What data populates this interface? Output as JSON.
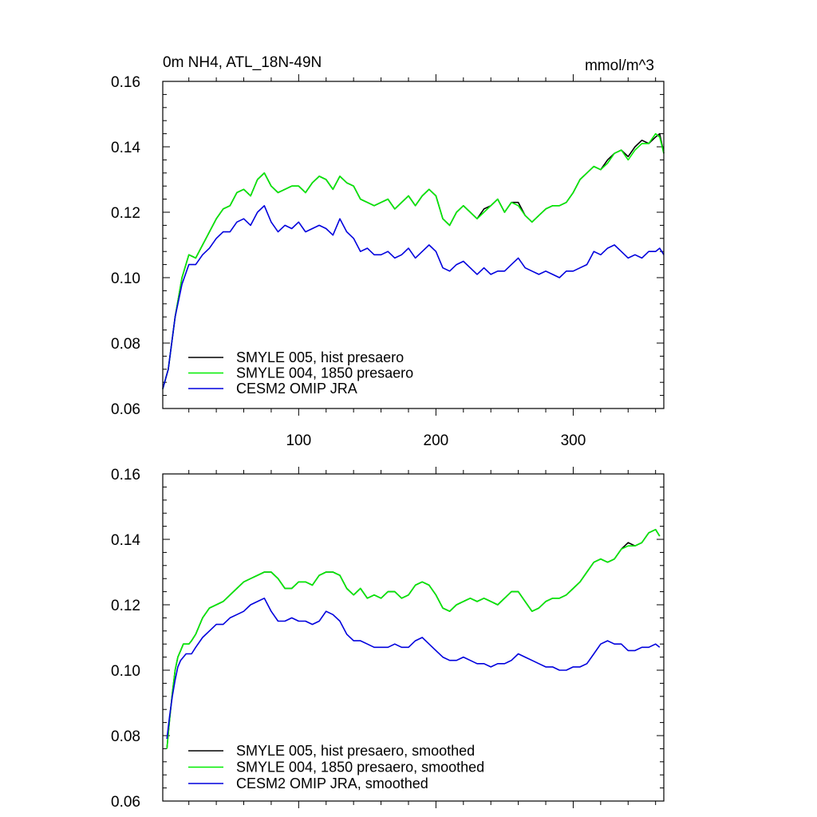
{
  "chart_data": [
    {
      "type": "line",
      "title_left": "0m NH4, ATL_18N-49N",
      "title_right": "mmol/m^3",
      "xlabel": "",
      "ylabel": "",
      "xlim": [
        1,
        366
      ],
      "ylim": [
        0.06,
        0.16
      ],
      "xticks": [
        100,
        200,
        300
      ],
      "xtick_labels": [
        "100",
        "200",
        "300"
      ],
      "yticks": [
        0.06,
        0.08,
        0.1,
        0.12,
        0.14,
        0.16
      ],
      "ytick_labels": [
        "0.06",
        "0.08",
        "0.10",
        "0.12",
        "0.14",
        "0.16"
      ],
      "legend_position": "bottom-left",
      "series": [
        {
          "name": "SMYLE 005, hist presaero",
          "color": "#000000",
          "x": [
            1,
            5,
            10,
            15,
            20,
            25,
            30,
            35,
            40,
            45,
            50,
            55,
            60,
            65,
            70,
            75,
            80,
            85,
            90,
            95,
            100,
            105,
            110,
            115,
            120,
            125,
            130,
            135,
            140,
            145,
            150,
            155,
            160,
            165,
            170,
            175,
            180,
            185,
            190,
            195,
            200,
            205,
            210,
            215,
            220,
            225,
            230,
            235,
            240,
            245,
            250,
            255,
            260,
            265,
            270,
            275,
            280,
            285,
            290,
            295,
            300,
            305,
            310,
            315,
            320,
            325,
            330,
            335,
            340,
            345,
            350,
            355,
            360,
            363,
            366
          ],
          "values": [
            0.066,
            0.072,
            0.088,
            0.1,
            0.107,
            0.106,
            0.11,
            0.114,
            0.118,
            0.121,
            0.122,
            0.126,
            0.127,
            0.125,
            0.13,
            0.132,
            0.128,
            0.126,
            0.127,
            0.128,
            0.128,
            0.126,
            0.129,
            0.131,
            0.13,
            0.127,
            0.131,
            0.129,
            0.128,
            0.124,
            0.123,
            0.122,
            0.123,
            0.124,
            0.121,
            0.123,
            0.125,
            0.122,
            0.125,
            0.127,
            0.125,
            0.118,
            0.116,
            0.12,
            0.122,
            0.12,
            0.118,
            0.121,
            0.122,
            0.124,
            0.12,
            0.123,
            0.123,
            0.119,
            0.117,
            0.119,
            0.121,
            0.122,
            0.122,
            0.123,
            0.126,
            0.13,
            0.132,
            0.134,
            0.133,
            0.136,
            0.138,
            0.139,
            0.137,
            0.14,
            0.142,
            0.141,
            0.143,
            0.144,
            0.138
          ]
        },
        {
          "name": "SMYLE 004, 1850 presaero",
          "color": "#00ee00",
          "x": [
            1,
            5,
            10,
            15,
            20,
            25,
            30,
            35,
            40,
            45,
            50,
            55,
            60,
            65,
            70,
            75,
            80,
            85,
            90,
            95,
            100,
            105,
            110,
            115,
            120,
            125,
            130,
            135,
            140,
            145,
            150,
            155,
            160,
            165,
            170,
            175,
            180,
            185,
            190,
            195,
            200,
            205,
            210,
            215,
            220,
            225,
            230,
            235,
            240,
            245,
            250,
            255,
            260,
            265,
            270,
            275,
            280,
            285,
            290,
            295,
            300,
            305,
            310,
            315,
            320,
            325,
            330,
            335,
            340,
            345,
            350,
            355,
            360,
            363,
            366
          ],
          "values": [
            0.066,
            0.072,
            0.088,
            0.1,
            0.107,
            0.106,
            0.11,
            0.114,
            0.118,
            0.121,
            0.122,
            0.126,
            0.127,
            0.125,
            0.13,
            0.132,
            0.128,
            0.126,
            0.127,
            0.128,
            0.128,
            0.126,
            0.129,
            0.131,
            0.13,
            0.127,
            0.131,
            0.129,
            0.128,
            0.124,
            0.123,
            0.122,
            0.123,
            0.124,
            0.121,
            0.123,
            0.125,
            0.122,
            0.125,
            0.127,
            0.125,
            0.118,
            0.116,
            0.12,
            0.122,
            0.12,
            0.118,
            0.12,
            0.122,
            0.124,
            0.12,
            0.123,
            0.122,
            0.119,
            0.117,
            0.119,
            0.121,
            0.122,
            0.122,
            0.123,
            0.126,
            0.13,
            0.132,
            0.134,
            0.133,
            0.135,
            0.138,
            0.139,
            0.136,
            0.139,
            0.141,
            0.141,
            0.144,
            0.143,
            0.138
          ]
        },
        {
          "name": "CESM2 OMIP JRA",
          "color": "#0000dd",
          "x": [
            1,
            5,
            10,
            15,
            20,
            25,
            30,
            35,
            40,
            45,
            50,
            55,
            60,
            65,
            70,
            75,
            80,
            85,
            90,
            95,
            100,
            105,
            110,
            115,
            120,
            125,
            130,
            135,
            140,
            145,
            150,
            155,
            160,
            165,
            170,
            175,
            180,
            185,
            190,
            195,
            200,
            205,
            210,
            215,
            220,
            225,
            230,
            235,
            240,
            245,
            250,
            255,
            260,
            265,
            270,
            275,
            280,
            285,
            290,
            295,
            300,
            305,
            310,
            315,
            320,
            325,
            330,
            335,
            340,
            345,
            350,
            355,
            360,
            363,
            366
          ],
          "values": [
            0.066,
            0.072,
            0.088,
            0.098,
            0.104,
            0.104,
            0.107,
            0.109,
            0.112,
            0.114,
            0.114,
            0.117,
            0.118,
            0.116,
            0.12,
            0.122,
            0.117,
            0.114,
            0.116,
            0.115,
            0.117,
            0.114,
            0.115,
            0.116,
            0.115,
            0.113,
            0.118,
            0.114,
            0.112,
            0.108,
            0.109,
            0.107,
            0.107,
            0.108,
            0.106,
            0.107,
            0.109,
            0.106,
            0.108,
            0.11,
            0.108,
            0.103,
            0.102,
            0.104,
            0.105,
            0.103,
            0.101,
            0.103,
            0.101,
            0.102,
            0.102,
            0.104,
            0.106,
            0.103,
            0.102,
            0.101,
            0.102,
            0.101,
            0.1,
            0.102,
            0.102,
            0.103,
            0.104,
            0.108,
            0.107,
            0.109,
            0.11,
            0.108,
            0.106,
            0.107,
            0.106,
            0.108,
            0.108,
            0.109,
            0.107
          ]
        }
      ]
    },
    {
      "type": "line",
      "title_left": "",
      "title_right": "",
      "xlabel": "",
      "ylabel": "",
      "xlim": [
        1,
        366
      ],
      "ylim": [
        0.06,
        0.16
      ],
      "xticks": [
        100,
        200,
        300
      ],
      "xtick_labels": [],
      "yticks": [
        0.06,
        0.08,
        0.1,
        0.12,
        0.14,
        0.16
      ],
      "ytick_labels": [
        "0.06",
        "0.08",
        "0.10",
        "0.12",
        "0.14",
        "0.16"
      ],
      "legend_position": "bottom-left",
      "series": [
        {
          "name": "SMYLE 005, hist presaero, smoothed",
          "color": "#000000",
          "x": [
            4,
            6,
            8,
            10,
            12,
            14,
            16,
            18,
            20,
            22,
            25,
            30,
            35,
            40,
            45,
            50,
            55,
            60,
            65,
            70,
            75,
            80,
            85,
            90,
            95,
            100,
            105,
            110,
            115,
            120,
            125,
            130,
            135,
            140,
            145,
            150,
            155,
            160,
            165,
            170,
            175,
            180,
            185,
            190,
            195,
            200,
            205,
            210,
            215,
            220,
            225,
            230,
            235,
            240,
            245,
            250,
            255,
            260,
            265,
            270,
            275,
            280,
            285,
            290,
            295,
            300,
            305,
            310,
            315,
            320,
            325,
            330,
            335,
            340,
            345,
            350,
            355,
            360,
            363
          ],
          "values": [
            0.076,
            0.085,
            0.093,
            0.1,
            0.104,
            0.106,
            0.108,
            0.108,
            0.108,
            0.109,
            0.111,
            0.116,
            0.119,
            0.12,
            0.121,
            0.123,
            0.125,
            0.127,
            0.128,
            0.129,
            0.13,
            0.13,
            0.128,
            0.125,
            0.125,
            0.127,
            0.127,
            0.126,
            0.129,
            0.13,
            0.13,
            0.129,
            0.125,
            0.123,
            0.125,
            0.122,
            0.123,
            0.122,
            0.124,
            0.124,
            0.122,
            0.123,
            0.126,
            0.127,
            0.126,
            0.123,
            0.119,
            0.118,
            0.12,
            0.121,
            0.122,
            0.121,
            0.122,
            0.121,
            0.12,
            0.122,
            0.124,
            0.124,
            0.121,
            0.118,
            0.119,
            0.121,
            0.122,
            0.122,
            0.123,
            0.125,
            0.127,
            0.13,
            0.133,
            0.134,
            0.133,
            0.134,
            0.137,
            0.139,
            0.138,
            0.139,
            0.142,
            0.143,
            0.141
          ]
        },
        {
          "name": "SMYLE 004, 1850 presaero, smoothed",
          "color": "#00ee00",
          "x": [
            4,
            6,
            8,
            10,
            12,
            14,
            16,
            18,
            20,
            22,
            25,
            30,
            35,
            40,
            45,
            50,
            55,
            60,
            65,
            70,
            75,
            80,
            85,
            90,
            95,
            100,
            105,
            110,
            115,
            120,
            125,
            130,
            135,
            140,
            145,
            150,
            155,
            160,
            165,
            170,
            175,
            180,
            185,
            190,
            195,
            200,
            205,
            210,
            215,
            220,
            225,
            230,
            235,
            240,
            245,
            250,
            255,
            260,
            265,
            270,
            275,
            280,
            285,
            290,
            295,
            300,
            305,
            310,
            315,
            320,
            325,
            330,
            335,
            340,
            345,
            350,
            355,
            360,
            363
          ],
          "values": [
            0.076,
            0.085,
            0.093,
            0.1,
            0.104,
            0.106,
            0.108,
            0.108,
            0.108,
            0.109,
            0.111,
            0.116,
            0.119,
            0.12,
            0.121,
            0.123,
            0.125,
            0.127,
            0.128,
            0.129,
            0.13,
            0.13,
            0.128,
            0.125,
            0.125,
            0.127,
            0.127,
            0.126,
            0.129,
            0.13,
            0.13,
            0.129,
            0.125,
            0.123,
            0.125,
            0.122,
            0.123,
            0.122,
            0.124,
            0.124,
            0.122,
            0.123,
            0.126,
            0.127,
            0.126,
            0.123,
            0.119,
            0.118,
            0.12,
            0.121,
            0.122,
            0.121,
            0.122,
            0.121,
            0.12,
            0.122,
            0.124,
            0.124,
            0.121,
            0.118,
            0.119,
            0.121,
            0.122,
            0.122,
            0.123,
            0.125,
            0.127,
            0.13,
            0.133,
            0.134,
            0.133,
            0.134,
            0.137,
            0.138,
            0.138,
            0.139,
            0.142,
            0.143,
            0.141
          ]
        },
        {
          "name": "CESM2 OMIP JRA, smoothed",
          "color": "#0000dd",
          "x": [
            4,
            6,
            8,
            10,
            12,
            14,
            16,
            18,
            20,
            22,
            25,
            30,
            35,
            40,
            45,
            50,
            55,
            60,
            65,
            70,
            75,
            80,
            85,
            90,
            95,
            100,
            105,
            110,
            115,
            120,
            125,
            130,
            135,
            140,
            145,
            150,
            155,
            160,
            165,
            170,
            175,
            180,
            185,
            190,
            195,
            200,
            205,
            210,
            215,
            220,
            225,
            230,
            235,
            240,
            245,
            250,
            255,
            260,
            265,
            270,
            275,
            280,
            285,
            290,
            295,
            300,
            305,
            310,
            315,
            320,
            325,
            330,
            335,
            340,
            345,
            350,
            355,
            360,
            363
          ],
          "values": [
            0.079,
            0.086,
            0.092,
            0.097,
            0.101,
            0.103,
            0.104,
            0.105,
            0.105,
            0.105,
            0.107,
            0.11,
            0.112,
            0.114,
            0.114,
            0.116,
            0.117,
            0.118,
            0.12,
            0.121,
            0.122,
            0.118,
            0.115,
            0.115,
            0.116,
            0.115,
            0.115,
            0.114,
            0.115,
            0.118,
            0.117,
            0.115,
            0.111,
            0.109,
            0.109,
            0.108,
            0.107,
            0.107,
            0.107,
            0.108,
            0.107,
            0.107,
            0.109,
            0.11,
            0.108,
            0.106,
            0.104,
            0.103,
            0.103,
            0.104,
            0.103,
            0.102,
            0.102,
            0.101,
            0.102,
            0.102,
            0.103,
            0.105,
            0.104,
            0.103,
            0.102,
            0.101,
            0.101,
            0.1,
            0.1,
            0.101,
            0.101,
            0.102,
            0.105,
            0.108,
            0.109,
            0.108,
            0.108,
            0.106,
            0.106,
            0.107,
            0.107,
            0.108,
            0.107
          ]
        }
      ]
    }
  ]
}
